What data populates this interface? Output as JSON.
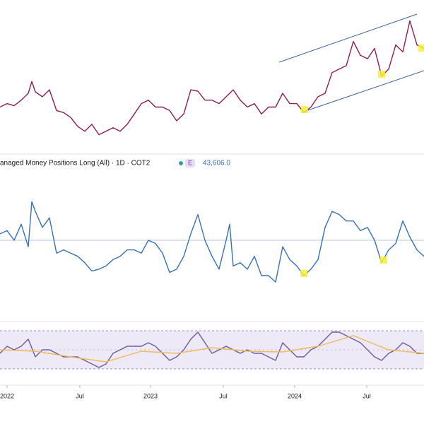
{
  "chart_data": [
    {
      "type": "line",
      "xlim": [
        0,
        600
      ],
      "ylim": [
        0,
        215
      ],
      "series": [
        {
          "color": "#8b1e4f",
          "x": [
            0,
            10,
            20,
            30,
            40,
            45,
            50,
            60,
            70,
            80,
            90,
            100,
            110,
            120,
            130,
            140,
            150,
            160,
            170,
            180,
            190,
            200,
            210,
            220,
            230,
            240,
            250,
            260,
            270,
            280,
            290,
            300,
            310,
            320,
            330,
            340,
            350,
            360,
            370,
            380,
            390,
            400,
            410,
            420,
            430,
            440,
            450,
            460,
            470,
            480,
            490,
            500,
            510,
            520,
            530,
            540,
            550,
            560,
            570,
            580,
            590,
            600
          ],
          "values": [
            65,
            70,
            67,
            75,
            85,
            102,
            87,
            80,
            90,
            60,
            57,
            50,
            37,
            30,
            40,
            25,
            30,
            35,
            30,
            40,
            55,
            70,
            75,
            65,
            65,
            60,
            45,
            55,
            90,
            88,
            75,
            75,
            70,
            80,
            90,
            75,
            65,
            70,
            55,
            65,
            65,
            85,
            70,
            70,
            57,
            65,
            80,
            85,
            115,
            120,
            125,
            160,
            140,
            135,
            150,
            110,
            120,
            155,
            145,
            190,
            155,
            150
          ]
        }
      ]
    },
    {
      "type": "line",
      "xlim": [
        0,
        600
      ],
      "ylim": [
        0,
        220
      ],
      "legend": {
        "name": "anaged Money Positions Long (All) · 1D · COT2",
        "badge": "E",
        "value": "43,606.0"
      },
      "series": [
        {
          "color": "#3a6fb0",
          "x": [
            0,
            10,
            20,
            30,
            40,
            45,
            50,
            60,
            70,
            80,
            90,
            100,
            110,
            120,
            130,
            140,
            150,
            160,
            170,
            180,
            190,
            200,
            210,
            220,
            230,
            240,
            250,
            260,
            270,
            280,
            290,
            300,
            310,
            320,
            325,
            330,
            340,
            350,
            360,
            370,
            380,
            390,
            400,
            410,
            420,
            430,
            440,
            450,
            460,
            470,
            480,
            490,
            500,
            510,
            520,
            530,
            540,
            550,
            560,
            570,
            580,
            590,
            600
          ],
          "values": [
            120,
            125,
            110,
            135,
            100,
            170,
            155,
            130,
            145,
            90,
            95,
            90,
            85,
            75,
            62,
            65,
            70,
            80,
            85,
            95,
            95,
            90,
            110,
            105,
            90,
            60,
            65,
            85,
            120,
            150,
            110,
            85,
            65,
            110,
            135,
            70,
            75,
            65,
            85,
            55,
            55,
            45,
            100,
            80,
            70,
            55,
            65,
            80,
            130,
            155,
            150,
            140,
            140,
            125,
            130,
            110,
            75,
            95,
            105,
            140,
            115,
            95,
            85
          ]
        }
      ]
    },
    {
      "type": "line",
      "xlim": [
        0,
        600
      ],
      "ylim": [
        0,
        70
      ],
      "xticks": [
        {
          "value": 10,
          "label": "2022"
        },
        {
          "value": 113,
          "label": "Jul"
        },
        {
          "value": 213,
          "label": "2023"
        },
        {
          "value": 316,
          "label": "Jul"
        },
        {
          "value": 417,
          "label": "2024"
        },
        {
          "value": 519,
          "label": "Jul"
        }
      ],
      "series": [
        {
          "color": "#6e5a9e",
          "x": [
            0,
            10,
            20,
            30,
            40,
            50,
            60,
            70,
            80,
            90,
            100,
            110,
            120,
            130,
            140,
            150,
            160,
            170,
            180,
            190,
            200,
            210,
            220,
            230,
            240,
            250,
            260,
            270,
            280,
            290,
            300,
            310,
            320,
            330,
            340,
            350,
            360,
            370,
            380,
            390,
            400,
            410,
            420,
            430,
            440,
            450,
            460,
            470,
            480,
            490,
            500,
            510,
            520,
            530,
            540,
            550,
            560,
            570,
            580,
            590,
            600
          ],
          "values": [
            30,
            40,
            35,
            40,
            50,
            25,
            35,
            35,
            30,
            25,
            25,
            25,
            20,
            15,
            10,
            15,
            30,
            35,
            40,
            40,
            40,
            45,
            40,
            30,
            20,
            25,
            35,
            50,
            60,
            45,
            30,
            35,
            40,
            35,
            30,
            35,
            30,
            30,
            25,
            20,
            45,
            35,
            25,
            25,
            35,
            40,
            50,
            60,
            60,
            55,
            50,
            45,
            35,
            25,
            20,
            30,
            35,
            45,
            40,
            30,
            30
          ]
        },
        {
          "color": "#f0b95a",
          "x": [
            0,
            50,
            100,
            150,
            200,
            250,
            300,
            350,
            400,
            450,
            500,
            550,
            600
          ],
          "values": [
            35,
            33,
            25,
            18,
            33,
            30,
            38,
            33,
            32,
            40,
            55,
            35,
            30
          ]
        }
      ]
    }
  ]
}
